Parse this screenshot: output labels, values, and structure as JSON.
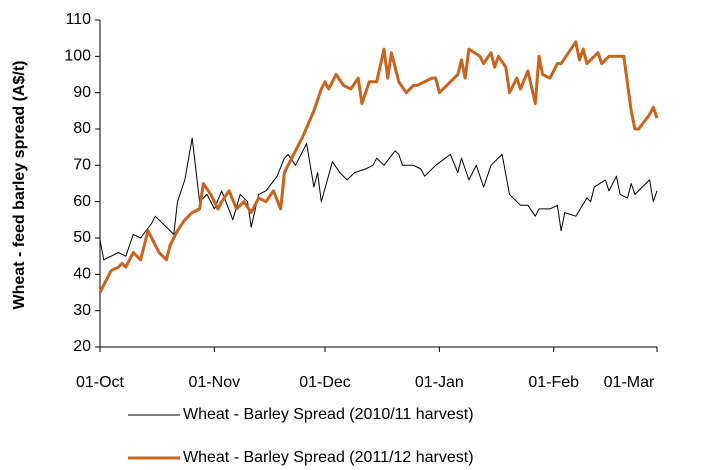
{
  "chart_data": {
    "type": "line",
    "y_label": "Wheat - feed barley spread (A$/t)",
    "ylim": [
      20,
      110
    ],
    "yticks": [
      20,
      30,
      40,
      50,
      60,
      70,
      80,
      90,
      100,
      110
    ],
    "xlim": [
      0,
      151
    ],
    "xticks": [
      {
        "value": 0,
        "label": "01-Oct"
      },
      {
        "value": 31,
        "label": "01-Nov"
      },
      {
        "value": 61,
        "label": "01-Dec"
      },
      {
        "value": 92,
        "label": "01-Jan"
      },
      {
        "value": 123,
        "label": "01-Feb"
      },
      {
        "value": 151,
        "label": "01-Mar"
      }
    ],
    "grid": false,
    "legend": "bottom",
    "series": [
      {
        "name": "Wheat - Barley Spread (2010/11 harvest)",
        "color": "#000000",
        "width": 1,
        "x": [
          0,
          1,
          3,
          5,
          7,
          9,
          11,
          14,
          15,
          17,
          20,
          21,
          23,
          25,
          27,
          29,
          31,
          33,
          36,
          38,
          40,
          41,
          43,
          45,
          48,
          50,
          51,
          53,
          56,
          58,
          59,
          60,
          63,
          65,
          67,
          69,
          72,
          74,
          75,
          77,
          80,
          81,
          82,
          85,
          87,
          88,
          89,
          91,
          95,
          97,
          98,
          100,
          102,
          104,
          106,
          109,
          111,
          114,
          116,
          118,
          119,
          122,
          124,
          125,
          126,
          129,
          132,
          133,
          134,
          137,
          138,
          140,
          141,
          143,
          144,
          145,
          147,
          149,
          150,
          151
        ],
        "values": [
          49.5,
          44,
          45,
          46,
          45,
          51,
          50,
          54,
          56,
          54,
          51,
          60,
          66,
          77.5,
          60,
          62,
          58,
          63,
          55,
          62,
          60,
          53,
          62,
          63,
          67,
          72,
          73,
          70,
          76,
          64,
          68,
          60,
          71,
          68,
          66,
          68,
          69,
          70,
          72,
          70,
          74,
          73,
          70,
          70,
          69,
          67,
          68,
          70,
          73,
          68,
          72,
          66,
          70,
          64,
          70,
          73,
          62,
          59,
          59,
          56,
          58,
          58,
          59,
          52,
          57,
          56,
          61,
          60,
          64,
          66,
          63,
          67,
          62,
          61,
          65,
          62,
          64,
          66,
          60,
          63
        ]
      },
      {
        "name": "Wheat - Barley Spread (2011/12 harvest)",
        "color": "#c8641e",
        "width": 3,
        "x": [
          0,
          1,
          3,
          5,
          6,
          7,
          9,
          11,
          13,
          16,
          18,
          19,
          21,
          23,
          25,
          27,
          28,
          30,
          32,
          33,
          35,
          37,
          39,
          41,
          43,
          45,
          47,
          49,
          50,
          53,
          55,
          58,
          60,
          61,
          62,
          64,
          66,
          68,
          70,
          71,
          73,
          75,
          77,
          78,
          79,
          81,
          83,
          85,
          86,
          90,
          91,
          92,
          97,
          98,
          99,
          100,
          103,
          104,
          106,
          107,
          108,
          110,
          111,
          113,
          114,
          116,
          118,
          119,
          120,
          122,
          124,
          125,
          127,
          129,
          130,
          131,
          132,
          134,
          135,
          136,
          138,
          142,
          144,
          145,
          146,
          149,
          150,
          151
        ],
        "values": [
          35,
          37,
          41,
          42,
          43,
          42,
          46,
          44,
          52,
          46,
          44,
          48,
          52,
          55,
          57,
          58,
          65,
          62,
          58,
          60,
          63,
          58,
          60,
          57,
          61,
          60,
          63,
          58,
          68,
          74,
          78,
          85,
          91,
          93,
          91,
          95,
          92,
          91,
          94,
          87,
          93,
          93,
          102,
          94,
          101,
          93,
          90,
          92,
          92,
          94,
          94,
          90,
          95,
          99,
          94,
          102,
          100,
          98,
          101,
          97,
          100,
          97,
          90,
          94,
          91,
          96,
          87,
          100,
          95,
          94,
          98,
          98,
          101,
          104,
          99,
          102,
          98,
          100,
          101,
          98,
          100,
          100,
          85,
          80,
          80,
          84,
          86,
          83
        ]
      }
    ]
  }
}
